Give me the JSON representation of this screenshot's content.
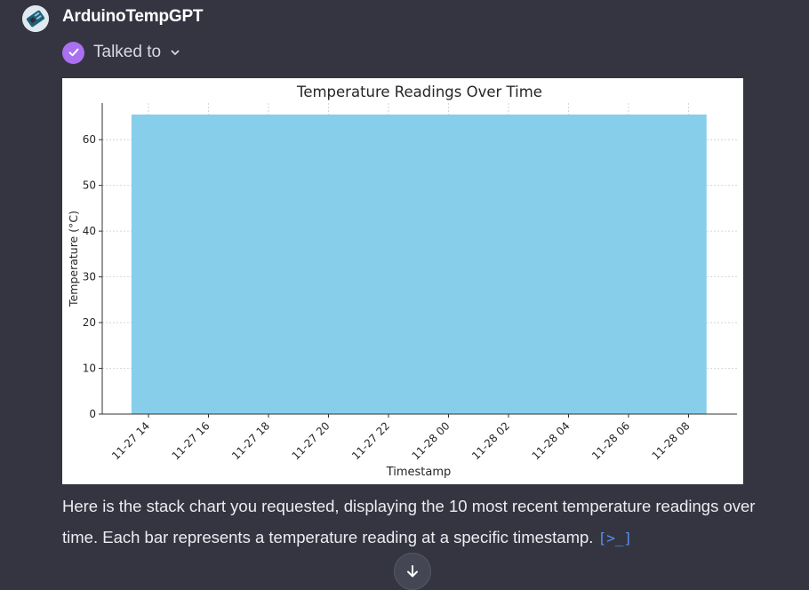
{
  "header": {
    "gpt_name": "ArduinoTempGPT",
    "avatar_icon": "arduino-board-icon"
  },
  "status": {
    "label": "Talked to",
    "check_icon": "check-circle-icon",
    "chevron_icon": "chevron-down-icon",
    "check_color": "#a970f0"
  },
  "chart_data": {
    "type": "area",
    "title": "Temperature Readings Over Time",
    "xlabel": "Timestamp",
    "ylabel": "Temperature (°C)",
    "x_tick_labels": [
      "11-27 14",
      "11-27 16",
      "11-27 18",
      "11-27 20",
      "11-27 22",
      "11-28 00",
      "11-28 02",
      "11-28 04",
      "11-28 06",
      "11-28 08"
    ],
    "y_tick_labels": [
      "0",
      "10",
      "20",
      "30",
      "40",
      "50",
      "60"
    ],
    "ylim": [
      0,
      68
    ],
    "grid": true,
    "fill_color": "#87ceeb",
    "series": [
      {
        "x_start": "11-27 13:26",
        "x_end": "11-28 08:36",
        "value": 65.5
      }
    ]
  },
  "message": {
    "text": "Here is the stack chart you requested, displaying the 10 most recent temperature readings over time. Each bar represents a temperature reading at a specific timestamp.",
    "code_link": "[>_]"
  },
  "scroll_button": {
    "icon": "arrow-down-icon"
  }
}
